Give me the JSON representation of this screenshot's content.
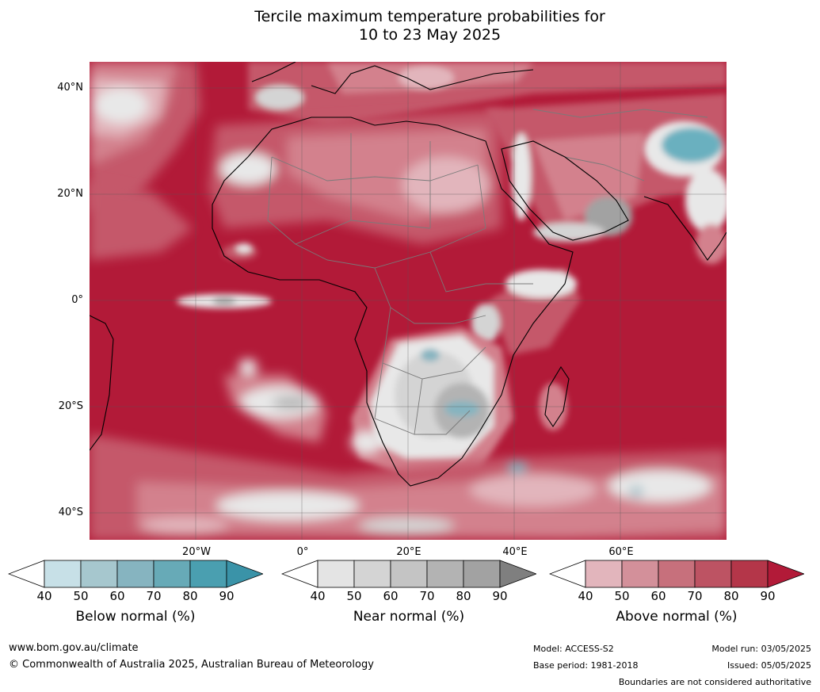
{
  "title": {
    "line1": "Tercile maximum temperature probabilities for",
    "line2": "10 to 23 May 2025"
  },
  "map": {
    "lat_labels": [
      "40°N",
      "20°N",
      "0°",
      "20°S",
      "40°S"
    ],
    "lon_labels": [
      "20°W",
      "0°",
      "20°E",
      "40°E",
      "60°E"
    ],
    "colors": {
      "ocean_above": "#b21a38",
      "above_70": "#c5596b",
      "above_60": "#d3818d",
      "above_50": "#e2b5bc",
      "near_normal": "#d4d4d4",
      "near_light": "#e8e8e8",
      "below": "#6ab0bf",
      "border_country": "#7a7a7a",
      "coastline": "#000000"
    }
  },
  "legends": [
    {
      "title": "Below normal (%)",
      "ticks": [
        "40",
        "50",
        "60",
        "70",
        "80",
        "90"
      ],
      "colors": [
        "#ffffff",
        "#c7e0e7",
        "#a6c7ce",
        "#86b4c0",
        "#67aab7",
        "#4a9fb0",
        "#3a93a8"
      ]
    },
    {
      "title": "Near normal (%)",
      "ticks": [
        "40",
        "50",
        "60",
        "70",
        "80",
        "90"
      ],
      "colors": [
        "#ffffff",
        "#e4e4e4",
        "#d4d4d4",
        "#c4c4c4",
        "#b3b3b3",
        "#a2a2a2",
        "#7f7f7f"
      ]
    },
    {
      "title": "Above normal (%)",
      "ticks": [
        "40",
        "50",
        "60",
        "70",
        "80",
        "90"
      ],
      "colors": [
        "#ffffff",
        "#e2b5bc",
        "#d3909a",
        "#c7707c",
        "#bd5363",
        "#b43649",
        "#b21a38"
      ]
    }
  ],
  "footer": {
    "website": "www.bom.gov.au/climate",
    "copyright": "© Commonwealth of Australia 2025, Australian Bureau of Meteorology",
    "model": "Model: ACCESS-S2",
    "base_period": "Base period: 1981-2018",
    "model_run": "Model run: 03/05/2025",
    "issued": "Issued: 05/05/2025",
    "disclaimer": "Boundaries are not considered authoritative"
  }
}
